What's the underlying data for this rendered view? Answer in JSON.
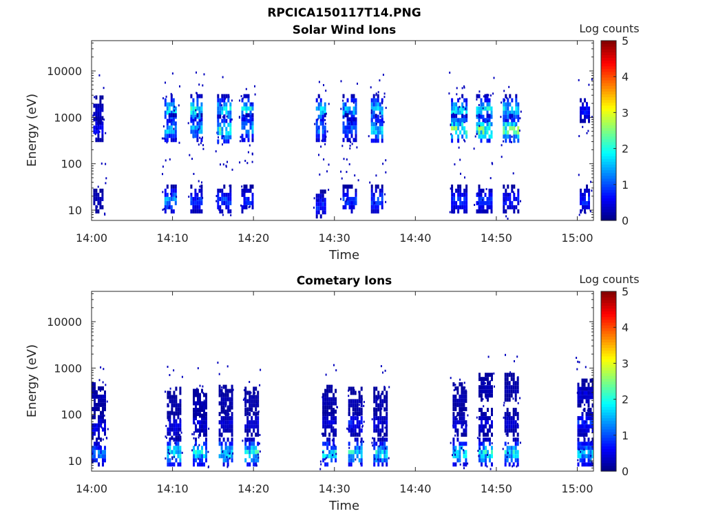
{
  "figure_title": "RPCICA150117T14.PNG",
  "chart_data": [
    {
      "type": "heatmap",
      "title": "Solar Wind Ions",
      "xlabel": "Time",
      "ylabel": "Energy (eV)",
      "x_ticks": [
        "14:00",
        "14:10",
        "14:20",
        "14:30",
        "14:40",
        "14:50",
        "15:00"
      ],
      "x_range": [
        "14:00",
        "15:02"
      ],
      "y_scale": "log",
      "y_ticks": [
        "10",
        "100",
        "1000",
        "10000"
      ],
      "y_range": [
        6,
        45000
      ],
      "colorbar": {
        "label": "Log counts",
        "range": [
          0,
          5
        ],
        "ticks": [
          "0",
          "1",
          "2",
          "3",
          "4",
          "5"
        ],
        "colormap": "jet"
      },
      "bursts": [
        {
          "t": 0.2,
          "dur": 1.2,
          "bands": [
            [
              620,
              0.7
            ],
            [
              1500,
              0.4
            ],
            [
              18,
              0.35
            ]
          ]
        },
        {
          "t": 9.0,
          "dur": 1.5,
          "bands": [
            [
              1600,
              2.0
            ],
            [
              620,
              1.8
            ],
            [
              18,
              1.5
            ]
          ]
        },
        {
          "t": 12.2,
          "dur": 1.3,
          "bands": [
            [
              1600,
              2.2
            ],
            [
              620,
              1.6
            ],
            [
              18,
              1.0
            ]
          ]
        },
        {
          "t": 15.5,
          "dur": 1.6,
          "bands": [
            [
              1600,
              2.1
            ],
            [
              580,
              2.2
            ],
            [
              18,
              1.0
            ]
          ]
        },
        {
          "t": 18.5,
          "dur": 1.4,
          "bands": [
            [
              1600,
              2.0
            ],
            [
              620,
              1.7
            ],
            [
              18,
              0.9
            ]
          ]
        },
        {
          "t": 27.7,
          "dur": 1.2,
          "bands": [
            [
              1600,
              1.9
            ],
            [
              620,
              1.4
            ],
            [
              14,
              0.9
            ]
          ]
        },
        {
          "t": 31.0,
          "dur": 1.6,
          "bands": [
            [
              1600,
              1.7
            ],
            [
              620,
              1.2
            ],
            [
              18,
              1.0
            ]
          ]
        },
        {
          "t": 34.5,
          "dur": 1.5,
          "bands": [
            [
              1600,
              2.0
            ],
            [
              600,
              1.9
            ],
            [
              18,
              1.1
            ]
          ]
        },
        {
          "t": 44.4,
          "dur": 1.8,
          "bands": [
            [
              1600,
              2.0
            ],
            [
              600,
              2.6
            ],
            [
              18,
              0.9
            ]
          ]
        },
        {
          "t": 47.5,
          "dur": 1.9,
          "bands": [
            [
              1600,
              2.0
            ],
            [
              600,
              2.7
            ],
            [
              18,
              0.9
            ]
          ]
        },
        {
          "t": 50.8,
          "dur": 1.9,
          "bands": [
            [
              1600,
              1.9
            ],
            [
              600,
              2.7
            ],
            [
              18,
              0.8
            ]
          ]
        },
        {
          "t": 60.3,
          "dur": 1.2,
          "bands": [
            [
              1600,
              0.8
            ],
            [
              18,
              0.9
            ]
          ]
        }
      ]
    },
    {
      "type": "heatmap",
      "title": "Cometary Ions",
      "xlabel": "Time",
      "ylabel": "Energy (eV)",
      "x_ticks": [
        "14:00",
        "14:10",
        "14:20",
        "14:30",
        "14:40",
        "14:50",
        "15:00"
      ],
      "x_range": [
        "14:00",
        "15:02"
      ],
      "y_scale": "log",
      "y_ticks": [
        "10",
        "100",
        "1000",
        "10000"
      ],
      "y_range": [
        6,
        45000
      ],
      "colorbar": {
        "label": "Log counts",
        "range": [
          0,
          5
        ],
        "ticks": [
          "0",
          "1",
          "2",
          "3",
          "4",
          "5"
        ],
        "colormap": "jet"
      },
      "bursts": [
        {
          "t": 0.0,
          "dur": 1.6,
          "bands": [
            [
              16,
              1.3
            ],
            [
              60,
              0.6
            ],
            [
              250,
              0.3
            ]
          ]
        },
        {
          "t": 9.3,
          "dur": 1.6,
          "bands": [
            [
              16,
              2.2
            ],
            [
              60,
              0.6
            ],
            [
              200,
              0.3
            ]
          ]
        },
        {
          "t": 12.5,
          "dur": 1.6,
          "bands": [
            [
              16,
              2.0
            ],
            [
              70,
              0.5
            ],
            [
              180,
              0.3
            ]
          ]
        },
        {
          "t": 15.7,
          "dur": 1.6,
          "bands": [
            [
              16,
              2.2
            ],
            [
              70,
              0.5
            ],
            [
              220,
              0.3
            ]
          ]
        },
        {
          "t": 18.9,
          "dur": 1.6,
          "bands": [
            [
              16,
              2.2
            ],
            [
              70,
              0.5
            ],
            [
              200,
              0.3
            ]
          ]
        },
        {
          "t": 28.5,
          "dur": 1.6,
          "bands": [
            [
              16,
              2.0
            ],
            [
              70,
              0.5
            ],
            [
              220,
              0.3
            ]
          ]
        },
        {
          "t": 31.7,
          "dur": 1.6,
          "bands": [
            [
              16,
              2.1
            ],
            [
              70,
              0.8
            ],
            [
              200,
              0.3
            ]
          ]
        },
        {
          "t": 34.8,
          "dur": 1.6,
          "bands": [
            [
              16,
              2.0
            ],
            [
              70,
              0.5
            ],
            [
              200,
              0.3
            ]
          ]
        },
        {
          "t": 44.6,
          "dur": 1.6,
          "bands": [
            [
              16,
              2.0
            ],
            [
              70,
              0.5
            ],
            [
              250,
              0.3
            ]
          ]
        },
        {
          "t": 47.8,
          "dur": 1.6,
          "bands": [
            [
              16,
              2.1
            ],
            [
              70,
              0.5
            ],
            [
              400,
              0.3
            ]
          ]
        },
        {
          "t": 51.0,
          "dur": 1.6,
          "bands": [
            [
              16,
              2.0
            ],
            [
              70,
              0.5
            ],
            [
              400,
              0.3
            ]
          ]
        },
        {
          "t": 60.0,
          "dur": 1.8,
          "bands": [
            [
              16,
              1.8
            ],
            [
              70,
              0.9
            ],
            [
              300,
              0.5
            ]
          ]
        }
      ]
    }
  ]
}
